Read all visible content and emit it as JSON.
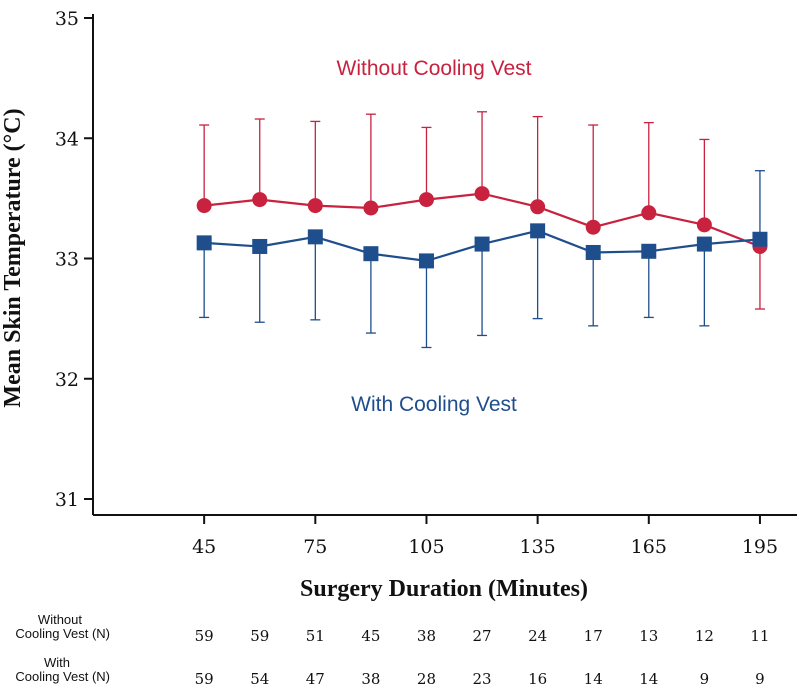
{
  "chart_data": {
    "type": "line",
    "title": "",
    "xlabel": "Surgery Duration (Minutes)",
    "ylabel": "Mean Skin Temperature (°C)",
    "xlim": [
      15,
      205
    ],
    "ylim": [
      31,
      35
    ],
    "x_ticks": [
      45,
      75,
      105,
      135,
      165,
      195
    ],
    "y_ticks": [
      31,
      32,
      33,
      34,
      35
    ],
    "x": [
      45,
      60,
      75,
      90,
      105,
      120,
      135,
      150,
      165,
      180,
      195
    ],
    "grid": false,
    "series": [
      {
        "name": "Without Cooling Vest",
        "color": "#C8223F",
        "marker": "circle",
        "values": [
          33.44,
          33.49,
          33.44,
          33.42,
          33.49,
          33.54,
          33.43,
          33.26,
          33.38,
          33.28,
          33.1
        ],
        "error_upper": [
          34.11,
          34.16,
          34.14,
          34.2,
          34.09,
          34.22,
          34.18,
          34.11,
          34.13,
          33.99,
          null
        ],
        "error_lower": [
          null,
          null,
          null,
          null,
          null,
          null,
          null,
          null,
          null,
          null,
          32.58
        ],
        "n_label_line1": "Without",
        "n_label_line2": "Cooling Vest (N)",
        "n": [
          59,
          59,
          51,
          45,
          38,
          27,
          24,
          17,
          13,
          12,
          11
        ]
      },
      {
        "name": "With Cooling Vest",
        "color": "#1F4E8C",
        "marker": "square",
        "values": [
          33.13,
          33.1,
          33.18,
          33.04,
          32.98,
          33.12,
          33.23,
          33.05,
          33.06,
          33.12,
          33.16
        ],
        "error_upper": [
          null,
          null,
          null,
          null,
          null,
          null,
          null,
          null,
          null,
          null,
          33.73
        ],
        "error_lower": [
          32.51,
          32.47,
          32.49,
          32.38,
          32.26,
          32.36,
          32.5,
          32.44,
          32.51,
          32.44,
          null
        ],
        "n_label_line1": "With",
        "n_label_line2": "Cooling Vest (N)",
        "n": [
          59,
          54,
          47,
          38,
          28,
          23,
          16,
          14,
          14,
          9,
          9
        ]
      }
    ],
    "annotations": [
      {
        "text": "Without Cooling Vest",
        "series": 0
      },
      {
        "text": "With Cooling Vest",
        "series": 1
      }
    ]
  }
}
